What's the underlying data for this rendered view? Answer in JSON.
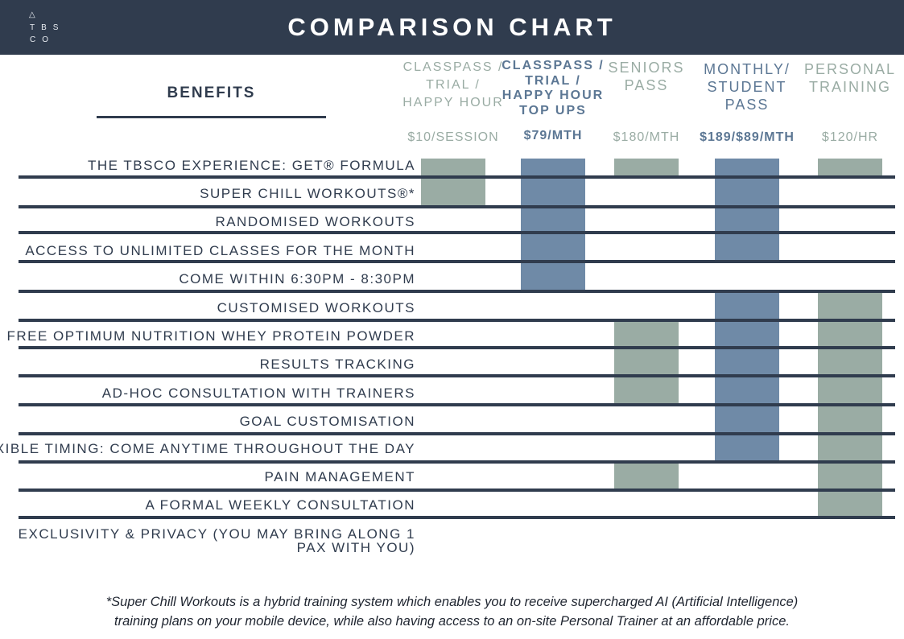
{
  "header": {
    "title": "COMPARISON CHART",
    "logo": {
      "mark": "△",
      "line2": "TBS",
      "line3": "CO"
    }
  },
  "benefits_heading": "BENEFITS",
  "colors": {
    "header_bg": "#303c4e",
    "grey_col": "#9aaca4",
    "blue_col": "#6f8aa7",
    "muted_text": "#9aaca4",
    "blue_text": "#5c7794"
  },
  "plans": [
    {
      "name": "CLASSPASS /\nTRIAL /\nHAPPY HOUR",
      "price": "$10/SESSION",
      "color": "grey"
    },
    {
      "name": "CLASSPASS /\nTRIAL /\nHAPPY HOUR\nTOP UPS",
      "price": "$79/MTH",
      "color": "blue"
    },
    {
      "name": "SENIORS\nPASS",
      "price": "$180/MTH",
      "color": "grey"
    },
    {
      "name": "MONTHLY/\nSTUDENT\nPASS",
      "price": "$189/$89/MTH",
      "color": "blue"
    },
    {
      "name": "PERSONAL\nTRAINING",
      "price": "$120/HR",
      "color": "grey"
    }
  ],
  "benefits": [
    "THE TBSCO EXPERIENCE: GET® FORMULA",
    "SUPER CHILL WORKOUTS®*",
    "RANDOMISED WORKOUTS",
    "ACCESS TO UNLIMITED CLASSES FOR THE MONTH",
    "COME WITHIN 6:30PM - 8:30PM",
    "CUSTOMISED WORKOUTS",
    "FREE OPTIMUM NUTRITION WHEY PROTEIN POWDER",
    "RESULTS TRACKING",
    "AD-HOC CONSULTATION WITH TRAINERS",
    "GOAL CUSTOMISATION",
    "FLEXIBLE TIMING: COME ANYTIME THROUGHOUT THE DAY",
    "PAIN MANAGEMENT",
    "A FORMAL WEEKLY CONSULTATION",
    "EXCLUSIVITY & PRIVACY (YOU MAY BRING ALONG 1\nPAX WITH YOU)"
  ],
  "inclusion": [
    [
      true,
      true,
      true,
      true,
      true
    ],
    [
      true,
      true,
      false,
      true,
      false
    ],
    [
      false,
      true,
      false,
      true,
      false
    ],
    [
      false,
      true,
      false,
      true,
      false
    ],
    [
      false,
      true,
      false,
      false,
      false
    ],
    [
      false,
      false,
      false,
      true,
      true
    ],
    [
      false,
      false,
      true,
      true,
      true
    ],
    [
      false,
      false,
      true,
      true,
      true
    ],
    [
      false,
      false,
      true,
      true,
      true
    ],
    [
      false,
      false,
      false,
      true,
      true
    ],
    [
      false,
      false,
      false,
      true,
      true
    ],
    [
      false,
      false,
      true,
      false,
      true
    ],
    [
      false,
      false,
      false,
      false,
      true
    ],
    [
      false,
      false,
      false,
      false,
      false
    ]
  ],
  "footnote": "*Super Chill Workouts is a hybrid training system which enables you to receive supercharged AI (Artificial Intelligence)\ntraining plans on your mobile device, while also having access to an on-site Personal Trainer at an affordable price."
}
